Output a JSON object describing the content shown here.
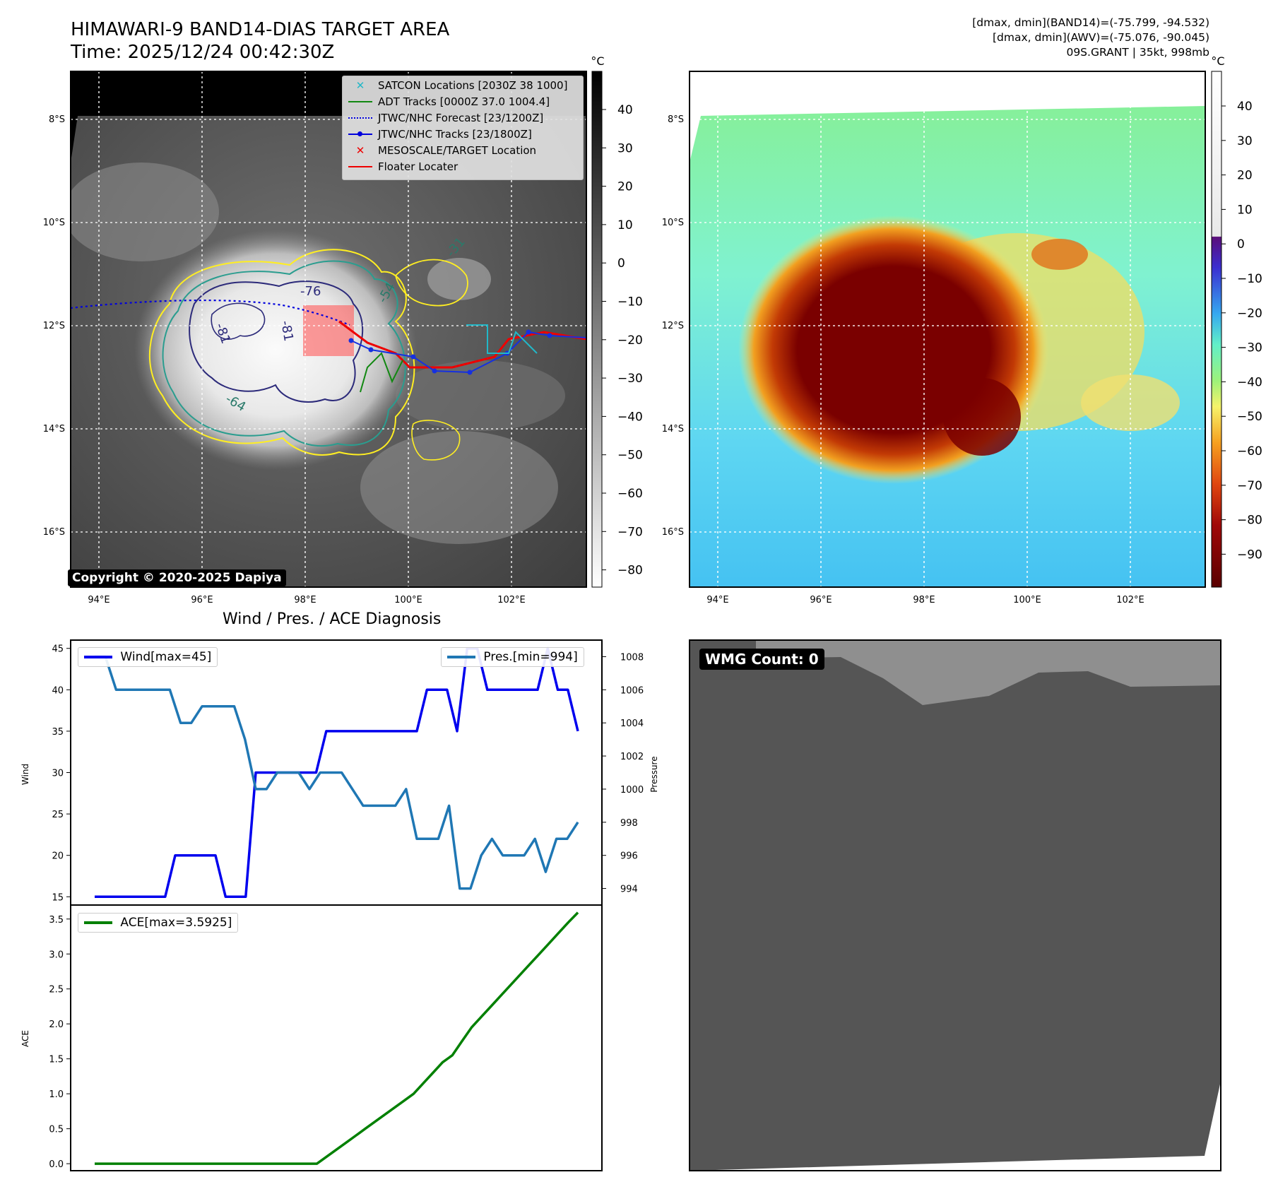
{
  "header": {
    "title_line1": "HIMAWARI-9 BAND14-DIAS TARGET AREA",
    "title_line2": "Time: 2025/12/24 00:42:30Z",
    "right_line1": "[dmax, dmin](BAND14)=(-75.799, -94.532)",
    "right_line2": "[dmax, dmin](AWV)=(-75.076, -90.045)",
    "right_line3": "09S.GRANT | 35kt, 998mb"
  },
  "map": {
    "lat_labels": [
      "8°S",
      "10°S",
      "12°S",
      "14°S",
      "16°S"
    ],
    "lon_labels": [
      "94°E",
      "96°E",
      "98°E",
      "100°E",
      "102°E"
    ],
    "copyright": "Copyright © 2020-2025 Dapiya",
    "contour_labels": [
      "-76",
      "-81",
      "-81",
      "-64",
      "-54",
      "-31"
    ],
    "legend": [
      {
        "label": "SATCON Locations [2030Z 38 1000]",
        "color": "#22b8c8",
        "kind": "x"
      },
      {
        "label": "ADT Tracks [0000Z 37.0 1004.4]",
        "color": "#118811",
        "kind": "line"
      },
      {
        "label": "JTWC/NHC Forecast [23/1200Z]",
        "color": "#0000dd",
        "kind": "dotted"
      },
      {
        "label": "JTWC/NHC Tracks [23/1800Z]",
        "color": "#0000dd",
        "kind": "line-dot"
      },
      {
        "label": "MESOSCALE/TARGET Location",
        "color": "#ee0000",
        "kind": "x"
      },
      {
        "label": "Floater Locater",
        "color": "#ee0000",
        "kind": "line"
      }
    ]
  },
  "colorbar_gray": {
    "unit": "°C",
    "ticks": [
      "40",
      "30",
      "20",
      "10",
      "0",
      "−10",
      "−20",
      "−30",
      "−40",
      "−50",
      "−60",
      "−70",
      "−80"
    ]
  },
  "colorbar_color": {
    "unit": "°C",
    "ticks": [
      "40",
      "30",
      "20",
      "10",
      "0",
      "−10",
      "−20",
      "−30",
      "−40",
      "−50",
      "−60",
      "−70",
      "−80",
      "−90"
    ]
  },
  "chart_data": [
    {
      "type": "line",
      "title": "Wind / Pres. / ACE Diagnosis",
      "ylabel": "Wind",
      "ylabel_right": "Pressure",
      "ylim": [
        14,
        46
      ],
      "ylim_right": [
        993,
        1009
      ],
      "yticks": [
        15,
        20,
        25,
        30,
        35,
        40,
        45
      ],
      "yticks_right": [
        994,
        996,
        998,
        1000,
        1002,
        1004,
        1006,
        1008
      ],
      "series": [
        {
          "name": "Wind[max=45]",
          "color": "#0000ee",
          "axis": "left",
          "values": [
            15,
            15,
            15,
            15,
            15,
            15,
            15,
            15,
            20,
            20,
            20,
            20,
            20,
            15,
            15,
            15,
            30,
            30,
            30,
            30,
            30,
            30,
            30,
            35,
            35,
            35,
            35,
            35,
            35,
            35,
            35,
            35,
            35,
            40,
            40,
            40,
            35,
            45,
            45,
            40,
            40,
            40,
            40,
            40,
            40,
            45,
            40,
            40,
            35
          ]
        },
        {
          "name": "Pres.[min=994]",
          "color": "#1f77b4",
          "axis": "right",
          "values": [
            1008,
            1008,
            1006,
            1006,
            1006,
            1006,
            1006,
            1006,
            1004,
            1004,
            1005,
            1005,
            1005,
            1005,
            1003,
            1000,
            1000,
            1001,
            1001,
            1001,
            1000,
            1001,
            1001,
            1001,
            1000,
            999,
            999,
            999,
            999,
            1000,
            997,
            997,
            997,
            999,
            994,
            994,
            996,
            997,
            996,
            996,
            996,
            997,
            995,
            997,
            997,
            998
          ]
        }
      ]
    },
    {
      "type": "line",
      "ylabel": "ACE",
      "ylim": [
        -0.1,
        3.7
      ],
      "yticks": [
        0.0,
        0.5,
        1.0,
        1.5,
        2.0,
        2.5,
        3.0,
        3.5
      ],
      "series": [
        {
          "name": "ACE[max=3.5925]",
          "color": "#008000",
          "values": [
            0,
            0,
            0,
            0,
            0,
            0,
            0,
            0,
            0,
            0,
            0,
            0,
            0,
            0,
            0,
            0,
            0,
            0,
            0,
            0,
            0,
            0,
            0,
            0,
            0.1,
            0.2,
            0.3,
            0.4,
            0.5,
            0.6,
            0.7,
            0.8,
            0.9,
            1.0,
            1.15,
            1.3,
            1.45,
            1.55,
            1.75,
            1.95,
            2.1,
            2.25,
            2.4,
            2.55,
            2.7,
            2.85,
            3.0,
            3.15,
            3.3,
            3.45,
            3.5925
          ]
        }
      ]
    }
  ],
  "wmg": {
    "count_label": "WMG Count: 0"
  }
}
